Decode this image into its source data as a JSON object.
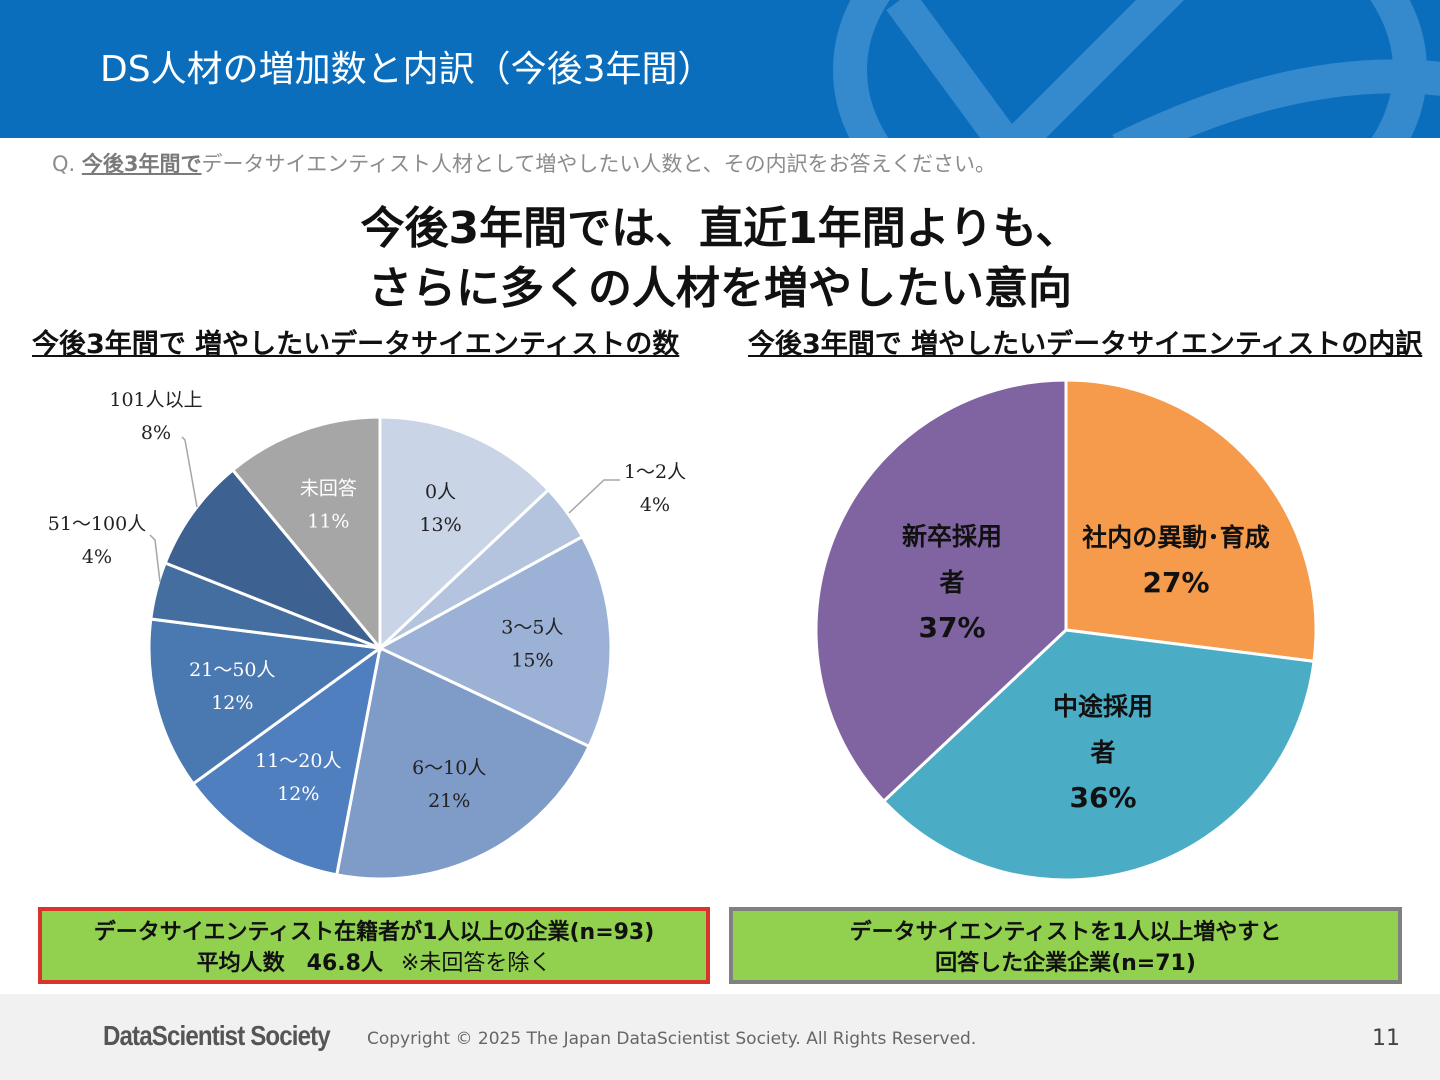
{
  "header": {
    "title": "DS人材の増加数と内訳（今後3年間）"
  },
  "question": {
    "prefix": "Q. ",
    "highlight": "今後3年間で",
    "rest": "データサイエンティスト人材として増やしたい人数と、その内訳をお答えください。"
  },
  "headline": {
    "line1": "今後3年間では、直近1年間よりも、",
    "line2": "さらに多くの人材を増やしたい意向"
  },
  "chart_data": [
    {
      "type": "pie",
      "title": "今後3年間で 増やしたいデータサイエンティストの数",
      "slices": [
        {
          "label": "0人",
          "value": 13,
          "display": "13%",
          "color": "#c9d4e7"
        },
        {
          "label": "1～2人",
          "value": 4,
          "display": "4%",
          "color": "#b4c3de"
        },
        {
          "label": "3～5人",
          "value": 15,
          "display": "15%",
          "color": "#9bb1d6"
        },
        {
          "label": "6～10人",
          "value": 21,
          "display": "21%",
          "color": "#7f9bc7"
        },
        {
          "label": "11～20人",
          "value": 12,
          "display": "12%",
          "color": "#4f7fbf"
        },
        {
          "label": "21～50人",
          "value": 12,
          "display": "12%",
          "color": "#4a78b0"
        },
        {
          "label": "51～100人",
          "value": 4,
          "display": "4%",
          "color": "#446ea0"
        },
        {
          "label": "101人以上",
          "value": 8,
          "display": "8%",
          "color": "#3d6190"
        },
        {
          "label": "未回答",
          "value": 11,
          "display": "11%",
          "color": "#a6a6a6"
        }
      ]
    },
    {
      "type": "pie",
      "title": "今後3年間で 増やしたいデータサイエンティストの内訳",
      "slices": [
        {
          "label": "社内の異動･育成",
          "value": 27,
          "display": "27%",
          "color": "#f59b4b"
        },
        {
          "label": "中途採用者",
          "value": 36,
          "display": "36%",
          "color": "#4bacc6"
        },
        {
          "label": "新卒採用者",
          "value": 37,
          "display": "37%",
          "color": "#8064a2"
        }
      ]
    }
  ],
  "boxes": {
    "left_line1": "データサイエンティスト在籍者が1人以上の企業(n=93)",
    "left_line2": "平均人数　46.8人",
    "left_note": "※未回答を除く",
    "right_line1": "データサイエンティストを1人以上増やすと",
    "right_line2": "回答した企業企業(n=71)"
  },
  "footer": {
    "logo": "DataScientist Society",
    "copyright": "Copyright © 2025 The Japan DataScientist Society. All Rights Reserved.",
    "page": "11"
  }
}
